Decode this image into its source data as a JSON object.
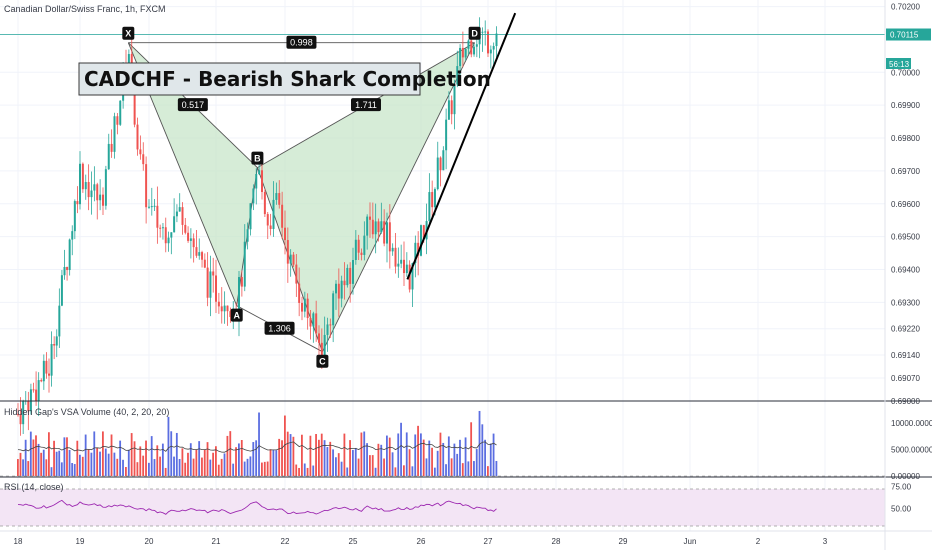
{
  "header": {
    "symbol_title": "Canadian Dollar/Swiss Franc, 1h, FXCM"
  },
  "annotation": {
    "title": "CADCHF - Bearish Shark Completion"
  },
  "price_tags": {
    "last_price": "0.70115",
    "countdown": "56:13"
  },
  "colors": {
    "bull": "#26a69a",
    "bear": "#ef5350",
    "pattern_fill": "#c8e6c9",
    "pattern_line": "#555555",
    "last_price_line": "#26a69a",
    "volume_up": "#5b6ee1",
    "volume_down": "#ef5350",
    "rsi_line": "#9c27b0",
    "rsi_band": "#f3e5f5"
  },
  "chart_data": [
    {
      "type": "candlestick",
      "title": "Canadian Dollar/Swiss Franc, 1h, FXCM",
      "y_ticks": [
        "0.70200",
        "0.70115",
        "0.70000",
        "0.69900",
        "0.69800",
        "0.69700",
        "0.69600",
        "0.69500",
        "0.69400",
        "0.69300",
        "0.69220",
        "0.69140",
        "0.69070",
        "0.69000"
      ],
      "x_ticks": [
        "18",
        "19",
        "20",
        "21",
        "22",
        "25",
        "26",
        "27",
        "28",
        "29",
        "Jun",
        "2",
        "3"
      ],
      "ylim": [
        0.69,
        0.7022
      ],
      "harmonic_pattern": {
        "name": "Bearish Shark",
        "points": [
          {
            "label": "X",
            "x": "19.7",
            "y": 0.7009
          },
          {
            "label": "A",
            "x": "21.3",
            "y": 0.6929
          },
          {
            "label": "B",
            "x": "21.6",
            "y": 0.6971
          },
          {
            "label": "C",
            "x": "22.55",
            "y": 0.6915
          },
          {
            "label": "D",
            "x": "26.8",
            "y": 0.7009
          }
        ],
        "ratios": [
          {
            "value": "0.998",
            "between": "X-D"
          },
          {
            "value": "0.517",
            "between": "X-B"
          },
          {
            "value": "1.711",
            "between": "B-D"
          },
          {
            "value": "1.306",
            "between": "A-C"
          }
        ]
      },
      "trendline": {
        "from": {
          "x": "25.8",
          "y": 0.6937
        },
        "to": {
          "x": "27.4",
          "y": 0.7018
        }
      }
    },
    {
      "type": "bar",
      "label": "Hidden Gap's VSA Volume (40, 2, 20, 20)",
      "y_ticks": [
        "10000.00000",
        "5000.00000",
        "0.00000"
      ],
      "ylim": [
        0,
        14000
      ]
    },
    {
      "type": "line",
      "label": "RSI (14, close)",
      "y_ticks": [
        "75.00",
        "50.00"
      ],
      "ylim": [
        25,
        85
      ],
      "bands": [
        70,
        30
      ]
    }
  ]
}
